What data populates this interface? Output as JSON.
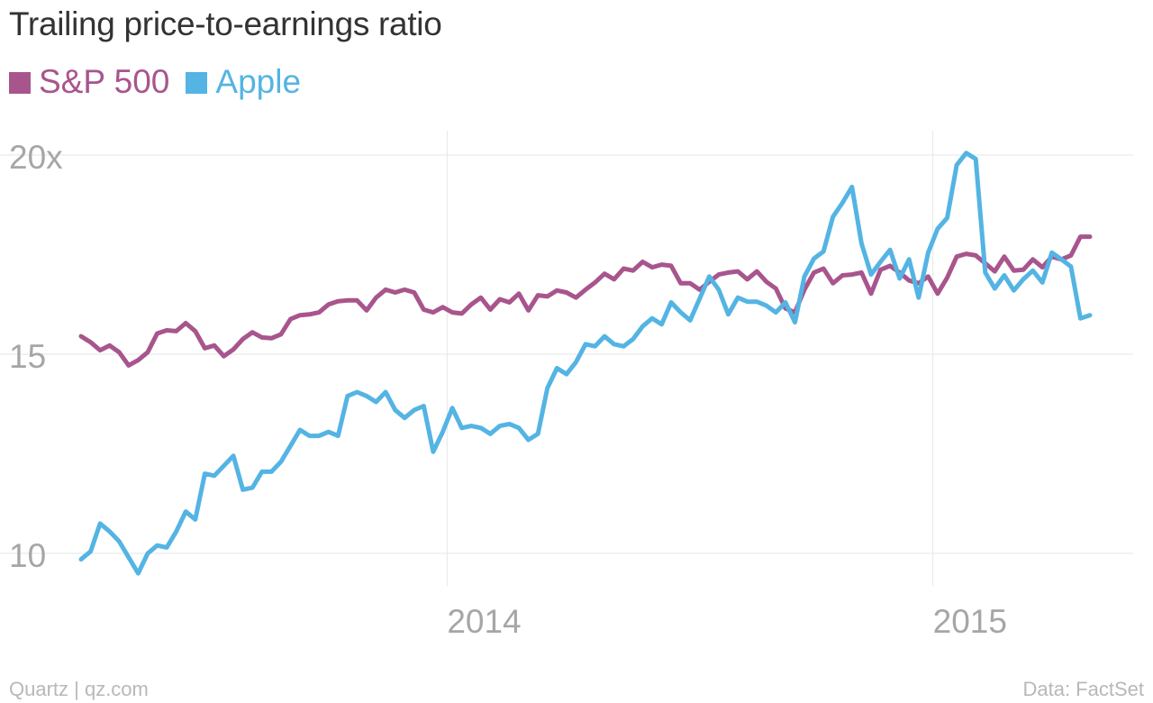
{
  "chart_data": {
    "type": "line",
    "title": "Trailing price-to-earnings ratio",
    "series": [
      {
        "name": "S&P 500",
        "color": "#a8558d",
        "values": [
          15.45,
          15.3,
          15.1,
          15.22,
          15.05,
          14.72,
          14.85,
          15.05,
          15.52,
          15.6,
          15.58,
          15.78,
          15.58,
          15.15,
          15.22,
          14.95,
          15.12,
          15.38,
          15.55,
          15.42,
          15.4,
          15.5,
          15.88,
          15.98,
          16.0,
          16.05,
          16.25,
          16.33,
          16.35,
          16.35,
          16.1,
          16.42,
          16.62,
          16.55,
          16.62,
          16.55,
          16.12,
          16.05,
          16.18,
          16.05,
          16.02,
          16.25,
          16.42,
          16.12,
          16.38,
          16.3,
          16.52,
          16.1,
          16.48,
          16.45,
          16.6,
          16.55,
          16.42,
          16.62,
          16.8,
          17.02,
          16.88,
          17.15,
          17.1,
          17.32,
          17.18,
          17.25,
          17.22,
          16.78,
          16.78,
          16.62,
          16.82,
          17.0,
          17.05,
          17.08,
          16.88,
          17.08,
          16.82,
          16.65,
          16.15,
          16.05,
          16.62,
          17.05,
          17.15,
          16.78,
          16.98,
          17.0,
          17.05,
          16.52,
          17.12,
          17.22,
          17.05,
          16.85,
          16.78,
          16.95,
          16.52,
          16.92,
          17.45,
          17.52,
          17.48,
          17.28,
          17.08,
          17.45,
          17.1,
          17.12,
          17.38,
          17.18,
          17.45,
          17.38,
          17.48,
          17.95,
          17.95
        ]
      },
      {
        "name": "Apple",
        "color": "#54b4e3",
        "values": [
          9.85,
          10.05,
          10.75,
          10.55,
          10.3,
          9.9,
          9.5,
          10.0,
          10.2,
          10.15,
          10.55,
          11.05,
          10.85,
          12.0,
          11.95,
          12.2,
          12.45,
          11.6,
          11.65,
          12.05,
          12.05,
          12.3,
          12.7,
          13.1,
          12.95,
          12.95,
          13.05,
          12.95,
          13.95,
          14.05,
          13.95,
          13.8,
          14.05,
          13.6,
          13.4,
          13.6,
          13.7,
          12.55,
          13.05,
          13.65,
          13.15,
          13.2,
          13.15,
          13.0,
          13.2,
          13.25,
          13.15,
          12.85,
          13.0,
          14.15,
          14.65,
          14.5,
          14.8,
          15.25,
          15.2,
          15.45,
          15.25,
          15.2,
          15.38,
          15.7,
          15.9,
          15.75,
          16.3,
          16.05,
          15.85,
          16.4,
          16.95,
          16.62,
          16.0,
          16.42,
          16.32,
          16.32,
          16.22,
          16.05,
          16.3,
          15.8,
          16.95,
          17.4,
          17.58,
          18.45,
          18.8,
          19.2,
          17.78,
          17.0,
          17.32,
          17.62,
          16.9,
          17.38,
          16.42,
          17.55,
          18.15,
          18.42,
          19.75,
          20.05,
          19.9,
          17.05,
          16.65,
          16.98,
          16.6,
          16.88,
          17.1,
          16.8,
          17.55,
          17.38,
          17.2,
          15.9,
          15.98
        ]
      }
    ],
    "x_start": "2013-04-01",
    "x_end": "2015-04-29",
    "x_ticks": [
      {
        "date": "2014-01-01",
        "label": "2014"
      },
      {
        "date": "2015-01-01",
        "label": "2015"
      }
    ],
    "y_ticks": [
      {
        "value": 10,
        "label": "10"
      },
      {
        "value": 15,
        "label": "15"
      },
      {
        "value": 20,
        "label": "20x"
      }
    ],
    "ylim": [
      8.6,
      20.6
    ],
    "grid": true,
    "legend_position": "top-left"
  },
  "footer": {
    "source_left": "Quartz | qz.com",
    "source_right": "Data: FactSet"
  }
}
